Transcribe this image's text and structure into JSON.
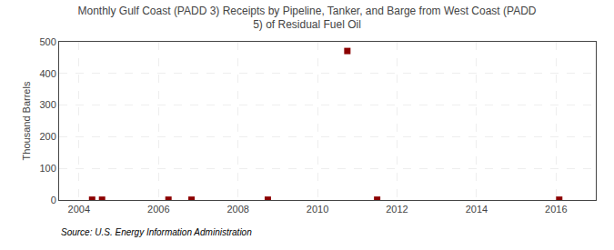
{
  "chart_data": {
    "type": "scatter",
    "title": "Monthly Gulf Coast (PADD 3) Receipts by Pipeline, Tanker, and Barge from West Coast (PADD\n5) of Residual Fuel Oil",
    "ylabel": "Thousand Barrels",
    "x": [
      2004.33,
      2004.58,
      2006.25,
      2006.83,
      2008.75,
      2010.75,
      2011.5,
      2016.08
    ],
    "values": [
      1,
      1,
      1,
      1,
      1,
      471,
      1,
      1
    ],
    "color": "#8b0000",
    "marker": "square",
    "xlim": [
      2003.5,
      2017.0
    ],
    "ylim": [
      0,
      500
    ],
    "xticks": [
      2004,
      2006,
      2008,
      2010,
      2012,
      2014,
      2016
    ],
    "yticks": [
      0,
      100,
      200,
      300,
      400,
      500
    ],
    "grid": true,
    "annotations": [
      "Source: U.S. Energy Information Administration"
    ]
  }
}
